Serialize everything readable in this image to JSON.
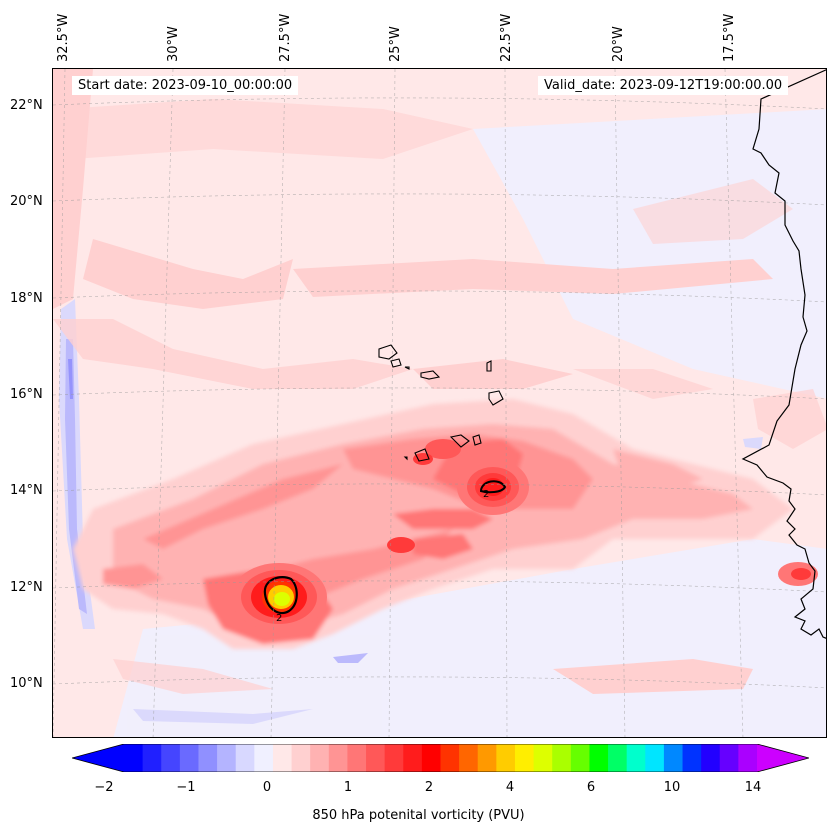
{
  "title_left": "Start date: 2023-09-10_00:00:00",
  "title_right": "Valid_date: 2023-09-12T19:00:00.00",
  "lon_labels": [
    "32.5°W",
    "30°W",
    "27.5°W",
    "25°W",
    "22.5°W",
    "20°W",
    "17.5°W"
  ],
  "lat_labels": [
    "22°N",
    "20°N",
    "18°N",
    "16°N",
    "14°N",
    "12°N",
    "10°N"
  ],
  "colorbar": {
    "label": "850 hPa potenital vorticity (PVU)",
    "ticks": [
      "−2",
      "−1",
      "0",
      "1",
      "2",
      "4",
      "6",
      "10",
      "14"
    ],
    "colors": [
      "#0000ff",
      "#2020ff",
      "#4545ff",
      "#6a6aff",
      "#9090ff",
      "#b4b4ff",
      "#d8d8ff",
      "#f0f0ff",
      "#ffe8e8",
      "#ffd0d0",
      "#ffb2b2",
      "#ff9494",
      "#ff7676",
      "#ff5858",
      "#ff3a3a",
      "#ff1c1c",
      "#ff0000",
      "#ff3300",
      "#ff6600",
      "#ff9900",
      "#ffcc00",
      "#ffee00",
      "#ddff00",
      "#aaff00",
      "#66ff00",
      "#00ff00",
      "#00ff66",
      "#00ffcc",
      "#00e5ff",
      "#0088ff",
      "#0033ff",
      "#2200ff",
      "#6600ff",
      "#aa00ff"
    ],
    "extend_low_color": "#0000ff",
    "extend_high_color": "#cc00ff"
  },
  "contour_label": "2"
}
